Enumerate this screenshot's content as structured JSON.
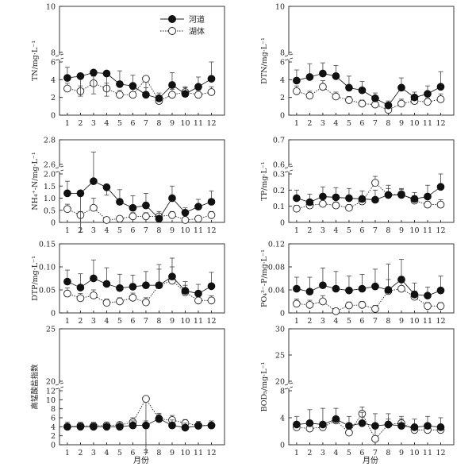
{
  "figure": {
    "xlabel": "月份"
  },
  "legend": {
    "river": "河道",
    "lake": "湖体"
  },
  "chart_data": [
    {
      "type": "line",
      "ylabel": "TN/mg·L⁻¹",
      "x": [
        1,
        2,
        3,
        4,
        5,
        6,
        7,
        8,
        9,
        10,
        11,
        12
      ],
      "y_break": true,
      "ylow_max": 6,
      "yhigh": [
        8,
        10
      ],
      "yticks_low": [
        "0",
        "2",
        "4",
        "6"
      ],
      "yticks_high": [
        "8",
        "10"
      ],
      "series": [
        {
          "name": "河道",
          "values": [
            4.2,
            4.4,
            4.8,
            4.7,
            3.5,
            3.3,
            2.3,
            1.9,
            3.4,
            2.4,
            3.2,
            4.1
          ],
          "errors": [
            1.2,
            1.7,
            1.4,
            1.4,
            1.5,
            1.2,
            0.8,
            0.6,
            1.4,
            0.7,
            1.1,
            1.9
          ]
        },
        {
          "name": "湖体",
          "values": [
            3.0,
            2.7,
            3.6,
            3.0,
            2.3,
            2.3,
            4.1,
            1.6,
            2.3,
            2.6,
            2.3,
            2.6
          ],
          "errors": [
            0.6,
            0.6,
            0.8,
            0.6,
            0.5,
            0.6,
            2.2,
            0.4,
            0.6,
            0.6,
            0.5,
            0.6
          ]
        }
      ]
    },
    {
      "type": "line",
      "ylabel": "DTN/mg·L⁻¹",
      "x": [
        1,
        2,
        3,
        4,
        5,
        6,
        7,
        8,
        9,
        10,
        11,
        12
      ],
      "y_break": true,
      "ylow_max": 6,
      "yhigh": [
        8,
        10
      ],
      "yticks_low": [
        "0",
        "2",
        "4",
        "6"
      ],
      "yticks_high": [
        "8",
        "10"
      ],
      "series": [
        {
          "name": "河道",
          "values": [
            3.9,
            4.3,
            4.7,
            4.4,
            3.1,
            2.8,
            1.9,
            1.1,
            3.1,
            2.0,
            2.4,
            3.2
          ],
          "errors": [
            1.2,
            1.5,
            1.2,
            1.2,
            1.3,
            1.0,
            0.6,
            0.5,
            1.1,
            0.6,
            0.9,
            1.7
          ]
        },
        {
          "name": "湖体",
          "values": [
            2.7,
            2.2,
            3.2,
            2.1,
            1.7,
            1.3,
            1.2,
            0.6,
            1.3,
            1.6,
            1.5,
            1.8
          ],
          "errors": [
            0.6,
            0.5,
            0.7,
            0.5,
            0.4,
            0.4,
            0.4,
            0.3,
            0.5,
            0.5,
            0.4,
            0.6
          ]
        }
      ]
    },
    {
      "type": "line",
      "ylabel": "NH₄⁺-N/mg·L⁻¹",
      "x": [
        1,
        2,
        3,
        4,
        5,
        6,
        7,
        8,
        9,
        10,
        11,
        12
      ],
      "y_break": true,
      "ylow_max": 2.0,
      "yhigh": [
        2.6,
        2.8
      ],
      "yticks_low": [
        "0",
        "0.5",
        "1.0",
        "1.5",
        "2.0"
      ],
      "yticks_high": [
        "2.6",
        "2.8"
      ],
      "series": [
        {
          "name": "河道",
          "values": [
            1.2,
            1.2,
            1.7,
            1.45,
            0.85,
            0.6,
            0.7,
            0.15,
            1.0,
            0.4,
            0.65,
            0.85
          ],
          "errors": [
            0.5,
            0.85,
            1.0,
            0.9,
            0.5,
            0.5,
            0.5,
            0.3,
            0.5,
            0.2,
            0.3,
            0.45
          ]
        },
        {
          "name": "湖体",
          "values": [
            0.55,
            0.3,
            0.6,
            0.1,
            0.15,
            0.25,
            0.25,
            0.25,
            0.3,
            0.1,
            0.15,
            0.3
          ],
          "errors": [
            0.2,
            0.15,
            0.4,
            0.1,
            0.1,
            0.15,
            0.15,
            0.1,
            0.15,
            0.05,
            0.1,
            0.15
          ]
        }
      ]
    },
    {
      "type": "line",
      "ylabel": "TP/mg·L⁻¹",
      "x": [
        1,
        2,
        3,
        4,
        5,
        6,
        7,
        8,
        9,
        10,
        11,
        12
      ],
      "y_break": true,
      "ylow_max": 0.3,
      "yhigh": [
        0.6,
        0.7
      ],
      "yticks_low": [
        "0",
        "0.1",
        "0.2",
        "0.3"
      ],
      "yticks_high": [
        "0.6",
        "0.7"
      ],
      "series": [
        {
          "name": "河道",
          "values": [
            0.15,
            0.125,
            0.16,
            0.155,
            0.15,
            0.145,
            0.14,
            0.17,
            0.17,
            0.145,
            0.16,
            0.22
          ],
          "errors": [
            0.05,
            0.05,
            0.06,
            0.06,
            0.06,
            0.05,
            0.06,
            0.04,
            0.04,
            0.04,
            0.07,
            0.08
          ]
        },
        {
          "name": "湖体",
          "values": [
            0.085,
            0.105,
            0.115,
            0.105,
            0.09,
            0.13,
            0.245,
            0.17,
            0.175,
            0.135,
            0.11,
            0.11
          ],
          "errors": [
            0.02,
            0.02,
            0.03,
            0.02,
            0.02,
            0.03,
            0.04,
            0.06,
            0.03,
            0.03,
            0.02,
            0.03
          ]
        }
      ]
    },
    {
      "type": "line",
      "ylabel": "DTP/mg·L⁻¹",
      "x": [
        1,
        2,
        3,
        4,
        5,
        6,
        7,
        8,
        9,
        10,
        11,
        12
      ],
      "y_break": false,
      "ylim": [
        0,
        0.15
      ],
      "yticks": [
        "0",
        "0.05",
        "0.10",
        "0.15"
      ],
      "series": [
        {
          "name": "河道",
          "values": [
            0.068,
            0.055,
            0.075,
            0.063,
            0.054,
            0.057,
            0.06,
            0.06,
            0.079,
            0.048,
            0.042,
            0.058
          ],
          "errors": [
            0.025,
            0.03,
            0.04,
            0.035,
            0.03,
            0.025,
            0.03,
            0.045,
            0.04,
            0.02,
            0.02,
            0.03
          ]
        },
        {
          "name": "湖体",
          "values": [
            0.042,
            0.032,
            0.038,
            0.022,
            0.025,
            0.033,
            0.023,
            0.06,
            0.07,
            0.045,
            0.027,
            0.027
          ],
          "errors": [
            0.012,
            0.01,
            0.012,
            0.008,
            0.008,
            0.01,
            0.01,
            0.035,
            0.03,
            0.015,
            0.01,
            0.01
          ]
        }
      ]
    },
    {
      "type": "line",
      "ylabel": "PO₄³⁻-P/mg·L⁻¹",
      "x": [
        1,
        2,
        3,
        4,
        5,
        6,
        7,
        8,
        9,
        10,
        11,
        12
      ],
      "y_break": false,
      "ylim": [
        0,
        0.12
      ],
      "yticks": [
        "0",
        "0.04",
        "0.08",
        "0.12"
      ],
      "series": [
        {
          "name": "河道",
          "values": [
            0.042,
            0.037,
            0.048,
            0.042,
            0.039,
            0.042,
            0.046,
            0.04,
            0.058,
            0.032,
            0.03,
            0.039
          ],
          "errors": [
            0.02,
            0.025,
            0.03,
            0.03,
            0.025,
            0.025,
            0.03,
            0.045,
            0.035,
            0.02,
            0.015,
            0.025
          ]
        },
        {
          "name": "湖体",
          "values": [
            0.016,
            0.014,
            0.02,
            0.003,
            0.013,
            0.014,
            0.007,
            0.038,
            0.042,
            0.028,
            0.012,
            0.012
          ],
          "errors": [
            0.008,
            0.008,
            0.01,
            0.004,
            0.006,
            0.006,
            0.006,
            0.02,
            0.02,
            0.01,
            0.006,
            0.006
          ]
        }
      ]
    },
    {
      "type": "line",
      "ylabel": "高锰酸盐指数",
      "x": [
        1,
        2,
        3,
        4,
        5,
        6,
        7,
        8,
        9,
        10,
        11,
        12
      ],
      "y_break": true,
      "ylow_max": 12,
      "yhigh": [
        20,
        25
      ],
      "yticks_low": [
        "0",
        "2",
        "4",
        "6",
        "8",
        "10",
        "12"
      ],
      "yticks_high": [
        "20",
        "25"
      ],
      "series": [
        {
          "name": "河道",
          "values": [
            4.0,
            4.0,
            4.0,
            4.0,
            4.0,
            4.3,
            4.3,
            5.8,
            4.3,
            3.8,
            4.2,
            4.3
          ],
          "errors": [
            1.0,
            1.0,
            1.0,
            1.0,
            1.0,
            1.0,
            1.0,
            1.2,
            1.2,
            1.0,
            1.0,
            1.0
          ]
        },
        {
          "name": "湖体",
          "values": [
            4.0,
            4.2,
            4.2,
            4.3,
            4.4,
            5.0,
            10.2,
            5.7,
            5.5,
            4.8,
            4.3,
            4.3
          ],
          "errors": [
            0.6,
            0.6,
            0.6,
            0.6,
            0.6,
            1.0,
            3.0,
            1.0,
            1.0,
            0.8,
            0.6,
            0.6
          ]
        }
      ]
    },
    {
      "type": "line",
      "ylabel": "BOD₅/mg·L⁻¹",
      "x": [
        1,
        2,
        3,
        4,
        5,
        6,
        7,
        8,
        9,
        10,
        11,
        12
      ],
      "y_break": true,
      "ylow_max": 8,
      "yhigh": [
        20,
        30
      ],
      "yticks_low": [
        "0",
        "4",
        "8"
      ],
      "yticks_high": [
        "20",
        "25",
        "30"
      ],
      "series": [
        {
          "name": "河道",
          "values": [
            3.0,
            3.2,
            3.0,
            3.8,
            2.8,
            3.2,
            2.8,
            3.0,
            2.8,
            2.6,
            2.8,
            2.6
          ],
          "errors": [
            1.2,
            2.0,
            2.4,
            1.6,
            1.4,
            1.6,
            1.8,
            1.6,
            1.4,
            1.2,
            1.4,
            1.4
          ]
        },
        {
          "name": "湖体",
          "values": [
            2.6,
            2.4,
            2.6,
            3.6,
            1.8,
            4.6,
            9.0,
            3.0,
            3.2,
            2.2,
            2.2,
            2.2
          ],
          "errors": [
            0.5,
            0.5,
            0.5,
            0.6,
            0.4,
            1.0,
            3.0,
            0.8,
            0.6,
            0.5,
            0.5,
            0.5
          ]
        }
      ]
    }
  ]
}
